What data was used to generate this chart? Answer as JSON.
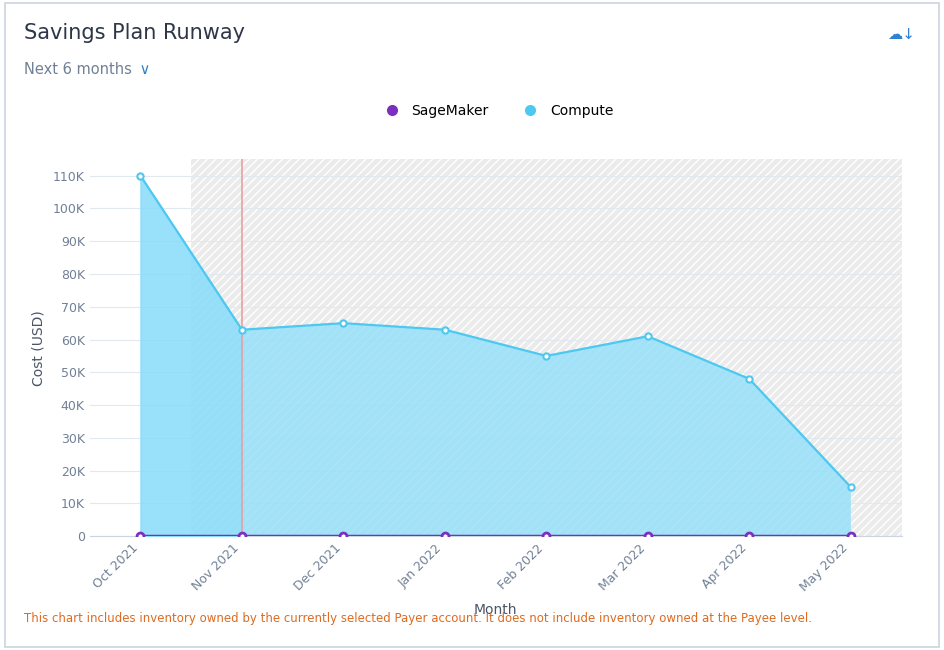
{
  "title": "Savings Plan Runway",
  "subtitle": "Next 6 months",
  "subtitle_arrow": " ∨",
  "xlabel": "Month",
  "ylabel": "Cost (USD)",
  "footer": "This chart includes inventory owned by the currently selected Payer account. It does not include inventory owned at the Payee level.",
  "x_labels": [
    "Oct 2021",
    "Nov 2021",
    "Dec 2021",
    "Jan 2022",
    "Feb 2022",
    "Mar 2022",
    "Apr 2022",
    "May 2022"
  ],
  "compute_values": [
    110000,
    63000,
    65000,
    63000,
    55000,
    61000,
    48000,
    15000
  ],
  "sagemaker_values": [
    0,
    0,
    0,
    0,
    0,
    0,
    0,
    0
  ],
  "ylim": [
    0,
    115000
  ],
  "yticks": [
    0,
    10000,
    20000,
    30000,
    40000,
    50000,
    60000,
    70000,
    80000,
    90000,
    100000,
    110000
  ],
  "vline_x_index": 1,
  "compute_fill_color": "#87DCFB",
  "compute_line_color": "#4DC8F0",
  "sagemaker_line_color": "#7B2FBE",
  "vline_color": "#E8A0A0",
  "bg_color": "#ffffff",
  "future_bg_color": "#ebebeb",
  "hatch_edgecolor": "#ffffff",
  "title_color": "#2d3748",
  "subtitle_color": "#718096",
  "subtitle_v_color": "#3182ce",
  "footer_color": "#dd6b20",
  "legend_sagemaker_color": "#7B2FBE",
  "legend_compute_color": "#4DC8F0",
  "grid_color": "#e2e8f0",
  "axis_label_color": "#4a5568",
  "tick_color": "#718096"
}
